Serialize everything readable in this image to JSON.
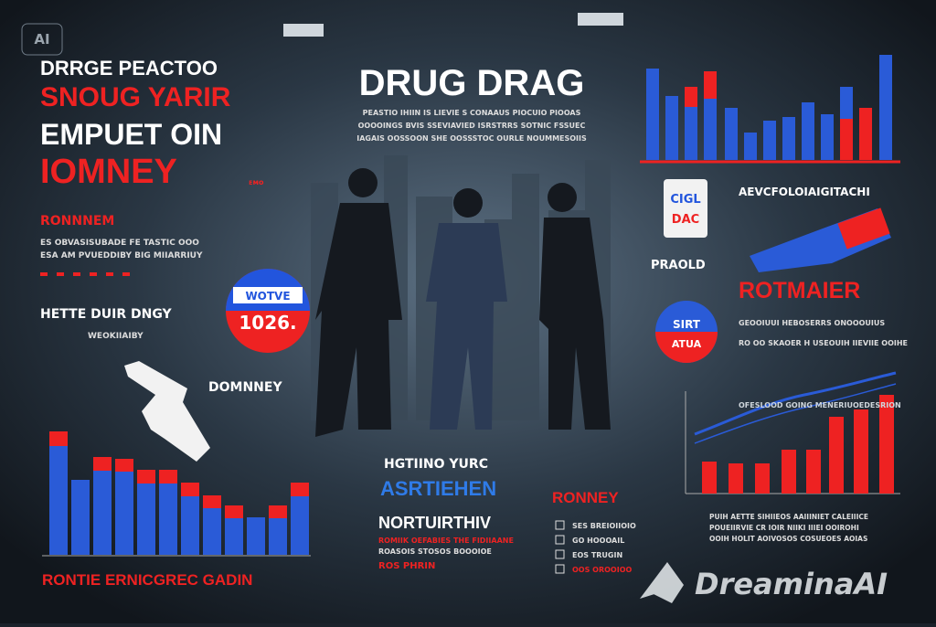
{
  "badge": "AI",
  "left": {
    "headline": [
      "DRRGE PEACTOO",
      "SNOUG YARIR",
      "EMPUET OIN",
      "IOMNEY"
    ],
    "tag": "ᴇᴍᴏ",
    "section": "RONNNEM",
    "body": [
      "ES OBVASISUBADE FE TASTIC OOO",
      "ESA AM PVUEDDIBY BIG MIIARRIUY"
    ],
    "subhead": "HETTE DUIR DNGY",
    "subbody": "WEOKIIAIBY",
    "badge_top": "WOTVE",
    "badge_value": "1026.",
    "gun_label": "DOMNNEY",
    "chart_title": "RONTIE ERNICGREC GADIN"
  },
  "center": {
    "title": "DRUG DRAG",
    "subtitle": [
      "PEASTIO IHIIN IS LIEVIE S CONAAUS PIOCUIO PIOOAS",
      "OOOOINGS BVIS SSEVIAVIED ISRSTRRS SOTNIC FSSUEC",
      "IAGAIS OOSSOON SHE OOSSSTOC OURLE NOUMMESOIIS"
    ],
    "lower_head": "HGTIINO YURC",
    "lower_accent": "ASRTIEHEN",
    "lower_title": "NORTUIRTHIV",
    "lower_body": "ROMIIK OEFABIES THE FIDIIAANE",
    "lower_body2": "ROASOIS STOSOS BOOOIOE",
    "lower_tag": "ROS PHRIN"
  },
  "right": {
    "card": [
      "CIGL",
      "DAC"
    ],
    "heading": "AEVCFOLOIAIGITACHI",
    "pill_label": "PRAOLD",
    "title": "ROTMAIER",
    "circle": [
      "SIRT",
      "ATUA"
    ],
    "body": [
      "GEOOIUUI HEBOSERRS ONOOOUIUS",
      "RO OO SKAOER H USEOUIH IIEVIIE OOIHE"
    ],
    "line_label": "OFESLOOD GOING MENERIUOEDESRION",
    "chart_body": [
      "PUIH AETTE SIHIIEOS AAIIINIET CALEIIICE",
      "POUEIIRVIE CR IOIR NIIKI IIIEI OOIROHI",
      "OOIH HOLIT AOIVOSOS COSUEOES AOIAS"
    ],
    "legend_title": "RONNEY",
    "legend": [
      "SES BREIOIIOIO",
      "GO HOOOAIL",
      "EOS TRUGIN",
      "OOS OROOIOO"
    ]
  },
  "watermark": "DreaminaAI"
}
